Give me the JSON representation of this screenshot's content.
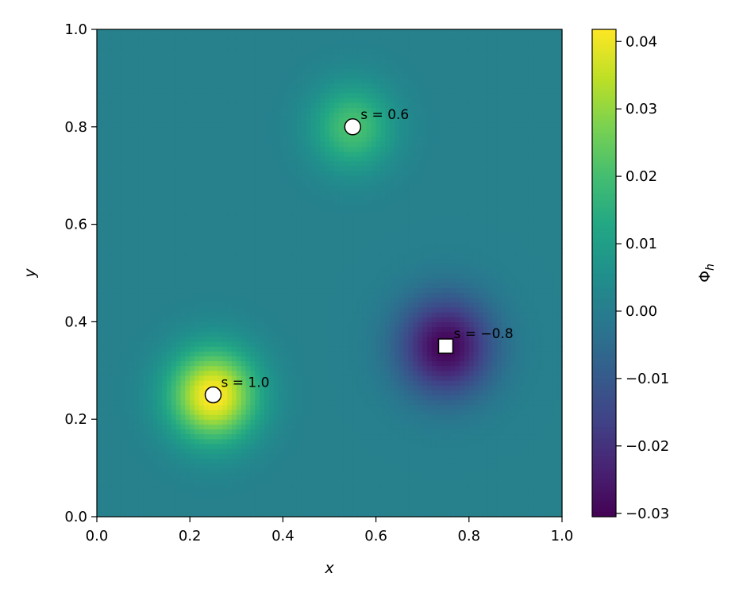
{
  "chart_data": {
    "type": "heatmap",
    "title": "",
    "xlabel": "x",
    "ylabel": "y",
    "xlim": [
      0.0,
      1.0
    ],
    "ylim": [
      0.0,
      1.0
    ],
    "x_ticks": [
      "0.0",
      "0.2",
      "0.4",
      "0.6",
      "0.8",
      "1.0"
    ],
    "y_ticks": [
      "0.0",
      "0.2",
      "0.4",
      "0.6",
      "0.8",
      "1.0"
    ],
    "x_tick_values": [
      0.0,
      0.2,
      0.4,
      0.6,
      0.8,
      1.0
    ],
    "y_tick_values": [
      0.0,
      0.2,
      0.4,
      0.6,
      0.8,
      1.0
    ],
    "colormap": "viridis",
    "colorbar": {
      "label": "Φ",
      "label_subscript": "h",
      "range": [
        -0.0305,
        0.0418
      ],
      "tick_values": [
        -0.03,
        -0.02,
        -0.01,
        0.0,
        0.01,
        0.02,
        0.03,
        0.04
      ],
      "tick_labels": [
        "−0.03",
        "−0.02",
        "−0.01",
        "0.00",
        "0.01",
        "0.02",
        "0.03",
        "0.04"
      ]
    },
    "background_value": 0.001,
    "grid": false,
    "sources": [
      {
        "x": 0.25,
        "y": 0.25,
        "s": 1.0,
        "label": "s = 1.0",
        "marker": "circle",
        "peak": 0.042,
        "width": 0.065
      },
      {
        "x": 0.55,
        "y": 0.8,
        "s": 0.6,
        "label": "s = 0.6",
        "marker": "circle",
        "peak": 0.02,
        "width": 0.06
      },
      {
        "x": 0.75,
        "y": 0.35,
        "s": -0.8,
        "label": "s = −0.8",
        "marker": "square",
        "peak": -0.031,
        "width": 0.07
      }
    ]
  }
}
